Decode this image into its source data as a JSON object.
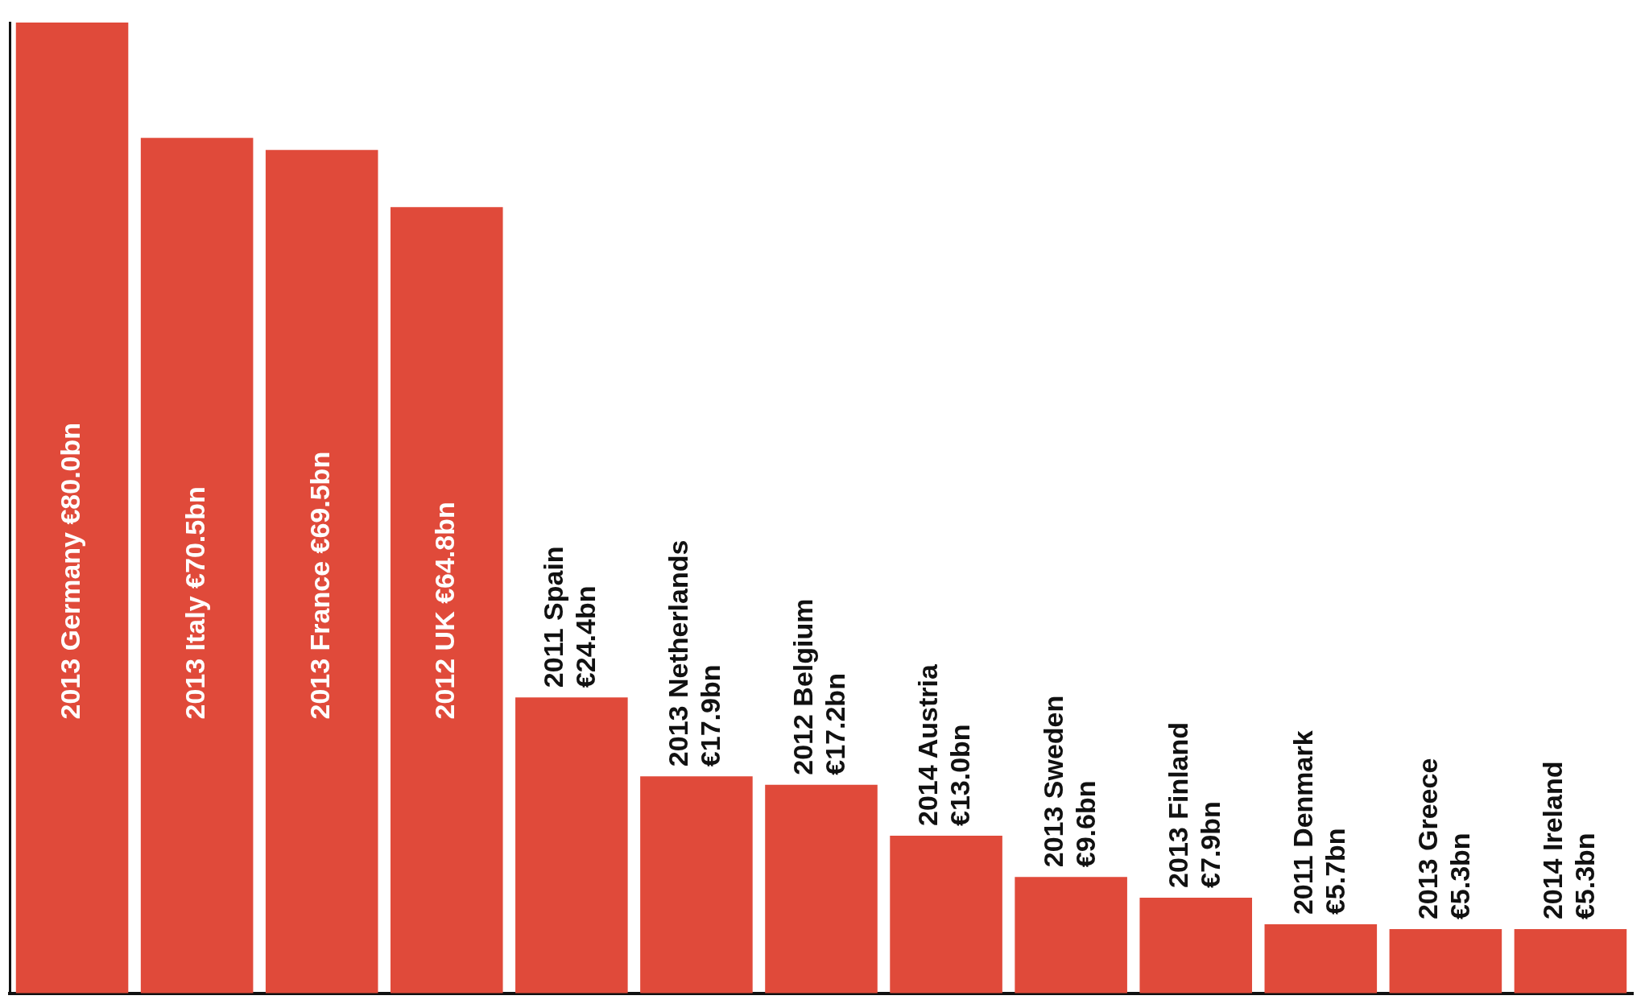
{
  "chart_data": {
    "type": "bar",
    "categories": [
      "2013 Germany",
      "2013 Italy",
      "2013 France",
      "2012 UK",
      "2011 Spain",
      "2013 Netherlands",
      "2012 Belgium",
      "2014 Austria",
      "2013 Sweden",
      "2013 Finland",
      "2011 Denmark",
      "2013 Greece",
      "2014 Ireland"
    ],
    "values": [
      80.0,
      70.5,
      69.5,
      64.8,
      24.4,
      17.9,
      17.2,
      13.0,
      9.6,
      7.9,
      5.7,
      5.3,
      5.3
    ],
    "value_labels": [
      "€80.0bn",
      "€70.5bn",
      "€69.5bn",
      "€64.8bn",
      "€24.4bn",
      "€17.9bn",
      "€17.2bn",
      "€13.0bn",
      "€9.6bn",
      "€7.9bn",
      "€5.7bn",
      "€5.3bn",
      "€5.3bn"
    ],
    "color": "#e04a3a",
    "tick_labels": "x",
    "grid": false,
    "legend": false
  }
}
